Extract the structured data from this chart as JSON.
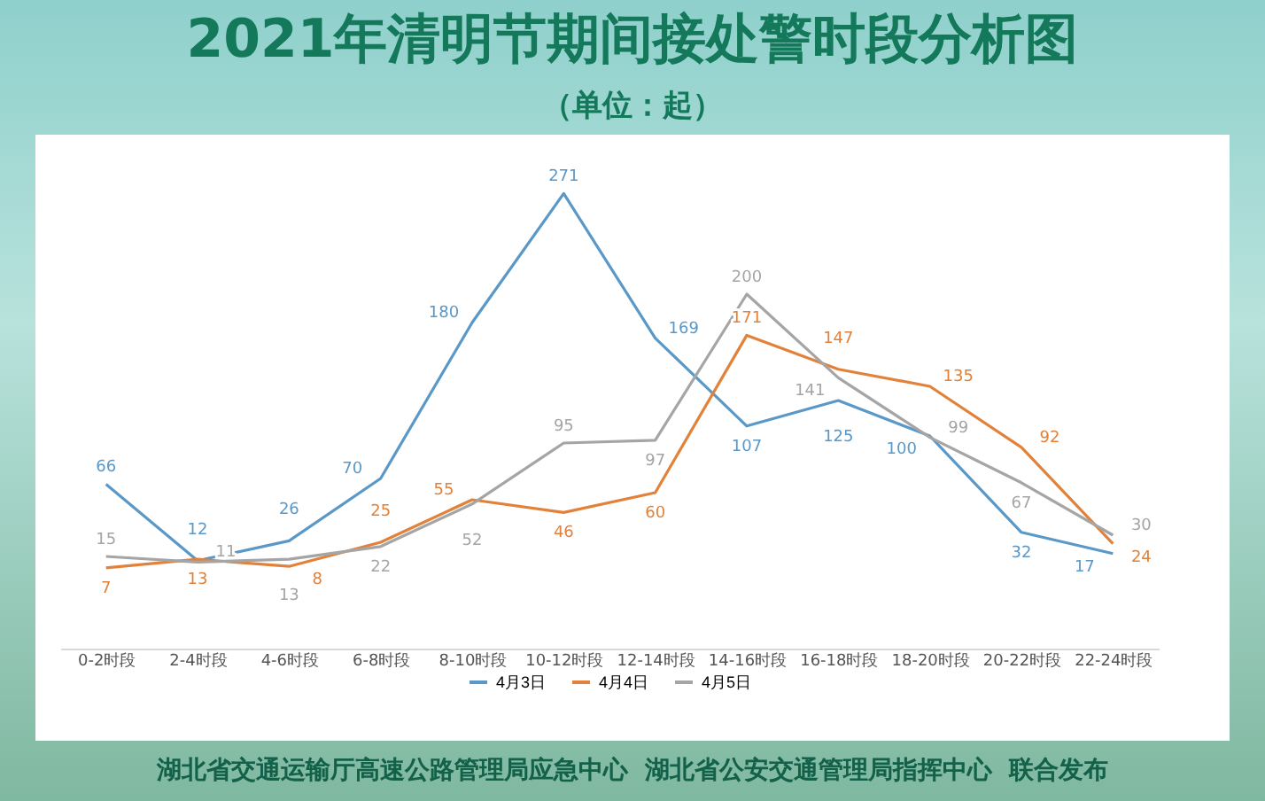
{
  "chart_data": {
    "type": "line",
    "title": "2021年清明节期间接处警时段分析图",
    "subtitle": "（单位：起）",
    "categories": [
      "0-2时段",
      "2-4时段",
      "4-6时段",
      "6-8时段",
      "8-10时段",
      "10-12时段",
      "12-14时段",
      "14-16时段",
      "16-18时段",
      "18-20时段",
      "20-22时段",
      "22-24时段"
    ],
    "series": [
      {
        "name": "4月3日",
        "color": "#5a98c8",
        "values": [
          66,
          12,
          26,
          70,
          180,
          271,
          169,
          107,
          125,
          100,
          32,
          17
        ]
      },
      {
        "name": "4月4日",
        "color": "#e2823a",
        "values": [
          7,
          13,
          8,
          25,
          55,
          46,
          60,
          171,
          147,
          135,
          92,
          24
        ]
      },
      {
        "name": "4月5日",
        "color": "#a5a5a5",
        "values": [
          15,
          11,
          13,
          22,
          52,
          95,
          97,
          200,
          141,
          99,
          67,
          30
        ]
      }
    ],
    "data_labels": true,
    "legend": "bottom",
    "grid": false,
    "marker": "none",
    "line_style": "solid",
    "annotations": [
      "湖北省交通运输厅高速公路管理局应急中心  湖北省公安交通管理局指挥中心  联合发布"
    ]
  }
}
